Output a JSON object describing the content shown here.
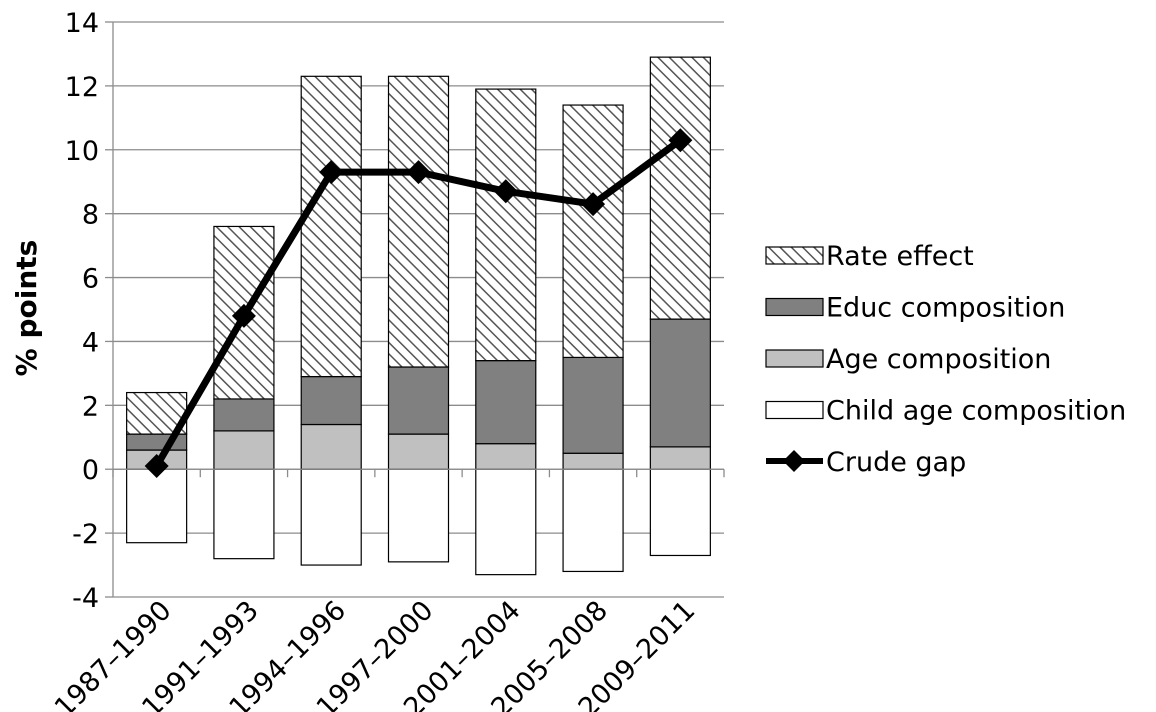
{
  "chart_data": {
    "type": "bar",
    "stacked": true,
    "title": "",
    "xlabel": "",
    "ylabel": "% points",
    "ylim": [
      -4,
      14
    ],
    "yticks": [
      -4,
      -2,
      0,
      2,
      4,
      6,
      8,
      10,
      12,
      14
    ],
    "grid": true,
    "legend_position": "right",
    "categories": [
      "1987–1990",
      "1991–1993",
      "1994–1996",
      "1997–2000",
      "2001–2004",
      "2005–2008",
      "2009–2011"
    ],
    "series": [
      {
        "name": "Rate effect",
        "kind": "bar",
        "fill": "hatched",
        "values": [
          1.3,
          5.4,
          9.4,
          9.1,
          8.5,
          7.9,
          8.2
        ]
      },
      {
        "name": "Educ composition",
        "kind": "bar",
        "color": "#808080",
        "values": [
          0.5,
          1.0,
          1.5,
          2.1,
          2.6,
          3.0,
          4.0
        ]
      },
      {
        "name": "Age composition",
        "kind": "bar",
        "color": "#c0c0c0",
        "values": [
          0.6,
          1.2,
          1.4,
          1.1,
          0.8,
          0.5,
          0.7
        ]
      },
      {
        "name": "Child age composition",
        "kind": "bar",
        "color": "#ffffff",
        "values": [
          -2.3,
          -2.8,
          -3.0,
          -2.9,
          -3.3,
          -3.2,
          -2.7
        ]
      },
      {
        "name": "Crude gap",
        "kind": "line",
        "marker": "diamond",
        "color": "#000000",
        "values": [
          0.1,
          4.8,
          9.3,
          9.3,
          8.7,
          8.3,
          10.3
        ]
      }
    ]
  }
}
